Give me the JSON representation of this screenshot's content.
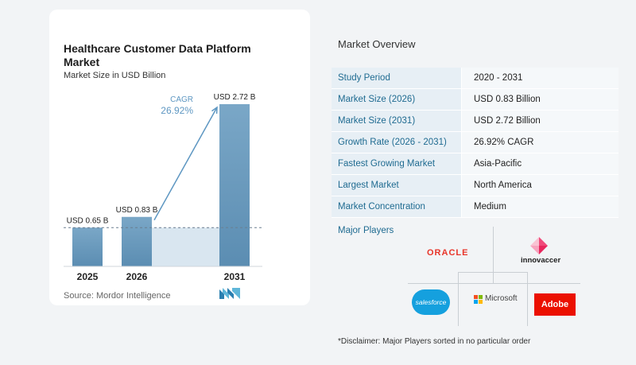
{
  "chart_data": {
    "type": "bar",
    "title": "Healthcare Customer Data Platform Market",
    "subtitle": "Market Size in USD Billion",
    "categories": [
      "2025",
      "2026",
      "2031"
    ],
    "values": [
      0.65,
      0.83,
      2.72
    ],
    "data_labels": [
      "USD 0.65 B",
      "USD 0.83 B",
      "USD 2.72 B"
    ],
    "cagr_label": "CAGR",
    "cagr_value": "26.92%",
    "ylim": [
      0,
      2.72
    ],
    "grid": false,
    "colors": {
      "bar_top": "#6f9fc0",
      "bar_bottom": "#5e8fb3",
      "shade": "#d9e6f0",
      "arrow": "#5e97c2",
      "cagr_text": "#5e97c2"
    }
  },
  "source": "Source:  Mordor Intelligence",
  "overview": {
    "title": "Market Overview",
    "rows": [
      {
        "label": "Study Period",
        "value": "2020 - 2031"
      },
      {
        "label": "Market Size (2026)",
        "value": "USD 0.83 Billion"
      },
      {
        "label": "Market Size (2031)",
        "value": "USD 2.72 Billion"
      },
      {
        "label": "Growth Rate (2026 - 2031)",
        "value": "26.92% CAGR"
      },
      {
        "label": "Fastest Growing Market",
        "value": "Asia-Pacific"
      },
      {
        "label": "Largest Market",
        "value": "North America"
      },
      {
        "label": "Market Concentration",
        "value": "Medium"
      }
    ]
  },
  "major_players": {
    "title": "Major Players",
    "logos": {
      "oracle": "ORACLE",
      "innovaccer": "innovaccer",
      "salesforce": "salesforce",
      "microsoft": "Microsoft",
      "adobe": "Adobe"
    }
  },
  "disclaimer": "*Disclaimer: Major Players sorted in no particular order",
  "icons": {
    "brand": "mordor-intelligence-logo-icon"
  }
}
